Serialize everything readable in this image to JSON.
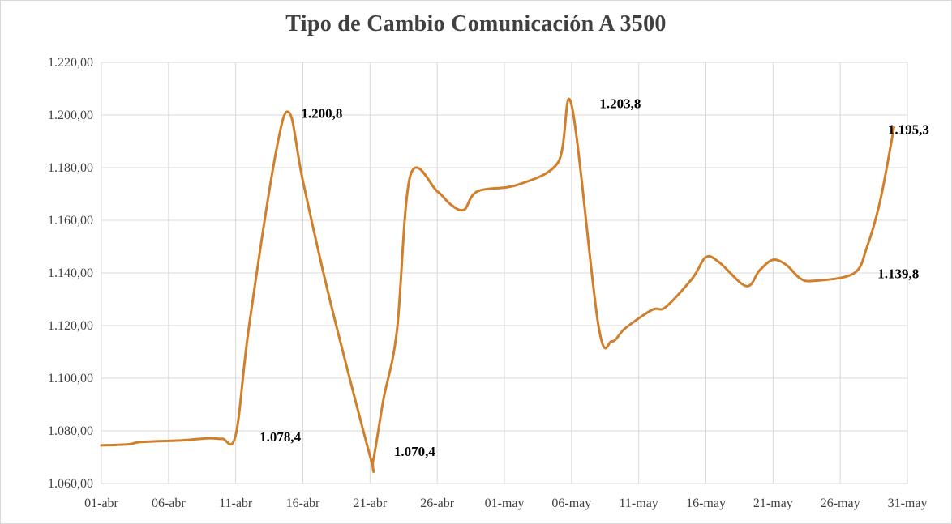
{
  "chart_data": {
    "type": "line",
    "title": "Tipo de Cambio Comunicación A 3500",
    "xlabel": "",
    "ylabel": "",
    "ylim": [
      1060,
      1220
    ],
    "y_ticks": [
      1060,
      1080,
      1100,
      1120,
      1140,
      1160,
      1180,
      1200,
      1220
    ],
    "y_tick_labels": [
      "1.060,00",
      "1.080,00",
      "1.100,00",
      "1.120,00",
      "1.140,00",
      "1.160,00",
      "1.180,00",
      "1.200,00",
      "1.220,00"
    ],
    "x_ticks": [
      "01-abr",
      "06-abr",
      "11-abr",
      "16-abr",
      "21-abr",
      "26-abr",
      "01-may",
      "06-may",
      "11-may",
      "16-may",
      "21-may",
      "26-may",
      "31-may"
    ],
    "grid": true,
    "legend": "none",
    "line_color": "#d07f2a",
    "series": [
      {
        "x": [
          "01-abr",
          "03-abr",
          "04-abr",
          "07-abr",
          "09-abr",
          "10-abr",
          "11-abr",
          "12-abr",
          "14-abr",
          "15-abr",
          "16-abr",
          "18-abr",
          "21-abr",
          "21-abr",
          "22-abr",
          "23-abr",
          "24-abr",
          "26-abr",
          "27-abr",
          "28-abr",
          "29-abr",
          "02-may",
          "05-may",
          "06-may",
          "08-may",
          "09-may",
          "10-may",
          "12-may",
          "13-may",
          "15-may",
          "16-may",
          "17-may",
          "19-may",
          "20-may",
          "21-may",
          "22-may",
          "23-may",
          "24-may",
          "27-may",
          "28-may",
          "29-may",
          "30-may"
        ],
        "values": [
          1074.5,
          1074.9,
          1075.8,
          1076.4,
          1077.2,
          1077.0,
          1078.4,
          1120,
          1186,
          1200.8,
          1175,
          1130,
          1070.4,
          1069,
          1092,
          1118,
          1177,
          1171,
          1166,
          1164,
          1171,
          1173.5,
          1182,
          1203.8,
          1120,
          1114,
          1119,
          1126,
          1127,
          1138,
          1146,
          1144,
          1135,
          1141,
          1145,
          1143,
          1138,
          1137,
          1139.8,
          1150,
          1168,
          1195.3
        ]
      }
    ],
    "annotations": [
      {
        "x": "15-abr",
        "y": 1200.8,
        "text": "1.200,8"
      },
      {
        "x": "11-abr",
        "y": 1078.4,
        "text": "1.078,4"
      },
      {
        "x": "21-abr",
        "y": 1070.4,
        "text": "1.070,4"
      },
      {
        "x": "06-may",
        "y": 1203.8,
        "text": "1.203,8"
      },
      {
        "x": "27-may",
        "y": 1139.8,
        "text": "1.139,8"
      },
      {
        "x": "30-may",
        "y": 1195.3,
        "text": "1.195,3"
      }
    ]
  }
}
